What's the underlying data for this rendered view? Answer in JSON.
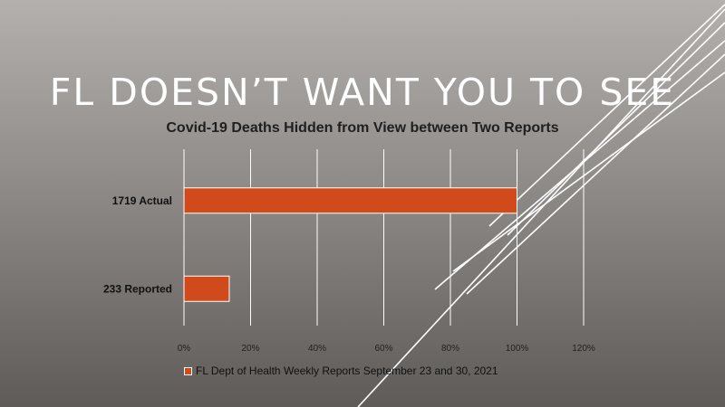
{
  "slide": {
    "headline": "FL DOESN’T WANT YOU TO SEE"
  },
  "colors": {
    "bar": "#d04a1c",
    "bar_border": "#ffffff",
    "grid": "#ffffff",
    "text": "#1f1f1f"
  },
  "chart_data": {
    "type": "bar",
    "orientation": "horizontal",
    "title": "Covid-19 Deaths Hidden from View between Two Reports",
    "categories": [
      "1719 Actual",
      "233 Reported"
    ],
    "series": [
      {
        "name": "FL Dept of Health Weekly Reports September 23 and 30, 2021",
        "values": [
          100,
          13.6
        ]
      }
    ],
    "x_ticks": [
      "0%",
      "20%",
      "40%",
      "60%",
      "80%",
      "100%",
      "120%"
    ],
    "xlim": [
      0,
      120
    ],
    "grid": true,
    "legend_position": "bottom"
  }
}
